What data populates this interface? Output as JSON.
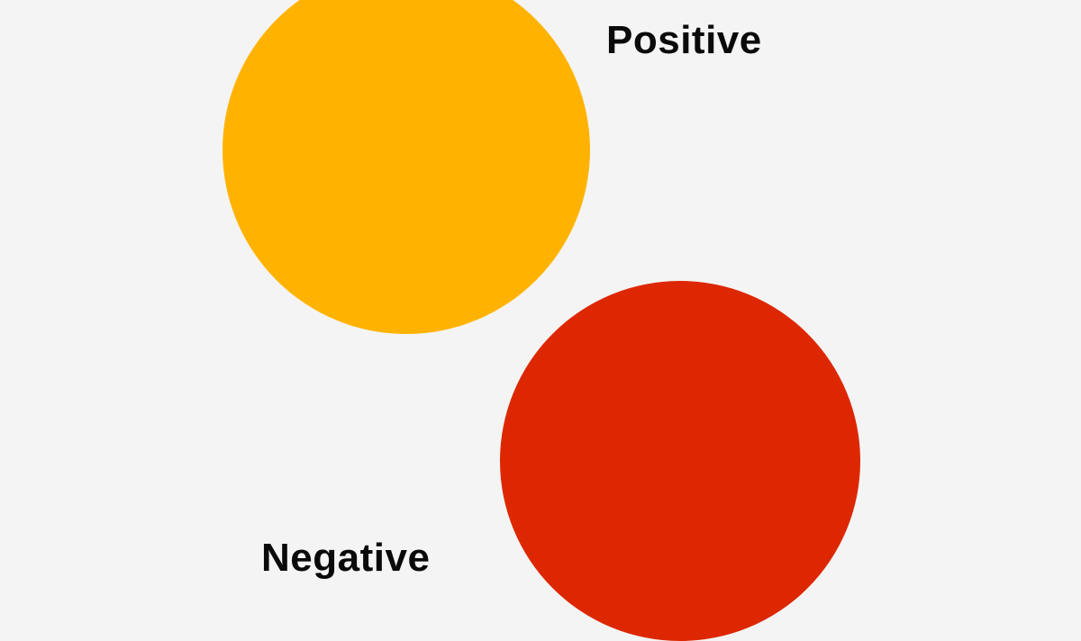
{
  "labels": {
    "positive": "Positive",
    "negative": "Negative"
  },
  "colors": {
    "background": "#f4f4f4",
    "positive": "#ffb300",
    "negative": "#dd2700",
    "text": "#0a0a0a"
  }
}
